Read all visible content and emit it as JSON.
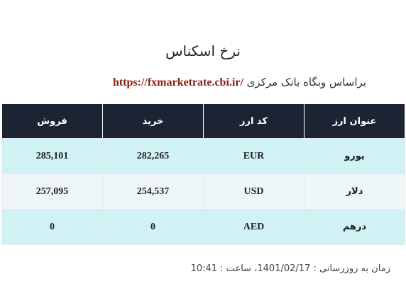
{
  "title": "نرخ اسکناس",
  "subtitle": {
    "text": "براساس وبگاه بانک مرکزی",
    "link": "https://fxmarketrate.cbi.ir/"
  },
  "table": {
    "headers": [
      "عنوان ارز",
      "کد ارز",
      "خرید",
      "فروش"
    ],
    "rows": [
      {
        "name": "یورو",
        "code": "EUR",
        "buy": "282,265",
        "sell": "285,101"
      },
      {
        "name": "دلار",
        "code": "USD",
        "buy": "254,537",
        "sell": "257,095"
      },
      {
        "name": "درهم",
        "code": "AED",
        "buy": "0",
        "sell": "0"
      }
    ]
  },
  "update_time": "زمان به روزرسانی : 1401/02/17، ساعت : 10:41",
  "colors": {
    "header_bg": "#1c2434",
    "row_odd_bg": "#d0f2f5",
    "row_even_bg": "#eef6f7",
    "link_color": "#8a1c10"
  }
}
